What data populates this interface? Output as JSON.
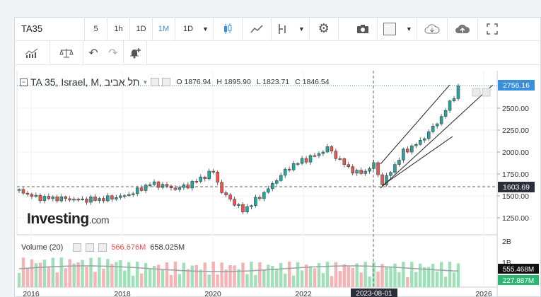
{
  "toolbar": {
    "symbol": "TA35",
    "intervals": [
      "5",
      "1h",
      "1D",
      "1M",
      "1D"
    ],
    "active_interval": "1M"
  },
  "legend": {
    "title": "TA 35, Israel, M, תל אביב",
    "open": "O 1876.94",
    "high": "H 1895.90",
    "low": "L 1823.71",
    "close": "C 1846.54"
  },
  "volume_legend": {
    "label": "Volume (20)",
    "value1": "566.676M",
    "value2": "658.025M"
  },
  "logo": {
    "main": "Investing",
    "suffix": ".com"
  },
  "price_axis": {
    "ticks": [
      "2500.00",
      "2250.00",
      "2000.00",
      "1750.00",
      "1500.00",
      "1250.00"
    ],
    "last_price": "2756.16",
    "crosshair_price": "1603.69"
  },
  "volume_axis": {
    "ticks": [
      "2B",
      "1B"
    ],
    "tag1": "555.468M",
    "tag2": "227.887M"
  },
  "time_axis": {
    "labels": [
      "2016",
      "2018",
      "2020",
      "2022",
      "2026"
    ],
    "crosshair_date": "2023-08-01"
  },
  "colors": {
    "up": "#26a69a",
    "down": "#ef5350",
    "accent": "#3a8fdc"
  }
}
